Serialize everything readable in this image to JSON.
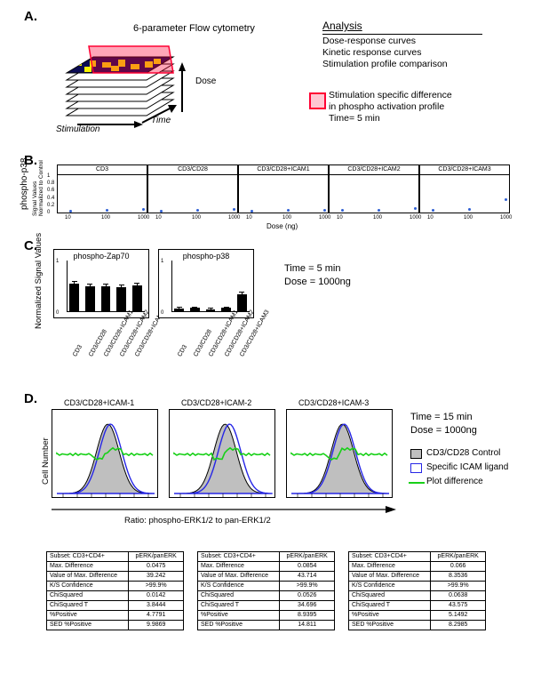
{
  "panel_letters": {
    "A": "A.",
    "B": "B.",
    "C": "C.",
    "D": "D."
  },
  "A": {
    "schematic_label": "6-parameter Flow cytometry",
    "y_arrow_label": "Dose",
    "x_axes": {
      "left": "Stimulation",
      "right": "Time"
    },
    "analysis_header": "Analysis",
    "analysis_items": [
      "Dose-response curves",
      "Kinetic response curves",
      "Stimulation profile comparison"
    ],
    "callout_box": "Stimulation specific difference\nin phospho activation profile\nTime= 5 min",
    "colors": {
      "slice_fill": "#ff0033",
      "slice_opacity": 0.35,
      "heat_dark": "#0b0b55",
      "heat_light": "#f7f300"
    }
  },
  "B": {
    "y_axis_outer": "phospho-p38",
    "y_axis_inner": "Signal Values\nNormalized to Control",
    "x_axis_label": "Dose (ng)",
    "conditions": [
      "CD3",
      "CD3/CD28",
      "CD3/CD28+ICAM1",
      "CD3/CD28+ICAM2",
      "CD3/CD28+ICAM3"
    ],
    "x_ticks": [
      10,
      100,
      1000
    ],
    "y_ticks": [
      0,
      0.2,
      0.4,
      0.6,
      0.8,
      1
    ],
    "point_color": "#2f5fd4",
    "facet_border": "#000000",
    "series_y": {
      "CD3": [
        0.04,
        0.07,
        0.08
      ],
      "CD3/CD28": [
        0.04,
        0.06,
        0.08
      ],
      "CD3/CD28+ICAM1": [
        0.04,
        0.06,
        0.07
      ],
      "CD3/CD28+ICAM2": [
        0.05,
        0.07,
        0.1
      ],
      "CD3/CD28+ICAM3": [
        0.05,
        0.09,
        0.36
      ]
    }
  },
  "C": {
    "titles": [
      "phospho-Zap70",
      "phospho-p38"
    ],
    "y_axis": "Normalized Signal Values",
    "y_ticks": [
      "0",
      "1"
    ],
    "categories": [
      "CD3",
      "CD3/CD28",
      "CD3/CD28+ICAM1",
      "CD3/CD28+ICAM2",
      "CD3/CD28+ICAM3"
    ],
    "values": {
      "phospho-Zap70": [
        0.55,
        0.5,
        0.5,
        0.48,
        0.52
      ],
      "phospho-p38": [
        0.07,
        0.08,
        0.05,
        0.08,
        0.35
      ]
    },
    "error": {
      "phospho-Zap70": [
        0.05,
        0.04,
        0.05,
        0.05,
        0.04
      ],
      "phospho-p38": [
        0.02,
        0.02,
        0.02,
        0.02,
        0.04
      ]
    },
    "bar_fill": "#000000",
    "annotation": "Time = 5 min\nDose = 1000ng"
  },
  "D": {
    "titles": [
      "CD3/CD28+ICAM-1",
      "CD3/CD28+ICAM-2",
      "CD3/CD28+ICAM-3"
    ],
    "y_axis": "Cell Number",
    "x_axis": "Ratio: phospho-ERK1/2 to pan-ERK1/2",
    "annotation": "Time = 15 min\nDose = 1000ng",
    "legend": {
      "control": {
        "label": "CD3/CD28 Control",
        "fill": "#bfbfbf"
      },
      "specific": {
        "label": "Specific ICAM ligand",
        "stroke": "#2626e6"
      },
      "diff": {
        "label": "Plot difference",
        "stroke": "#18d018"
      }
    },
    "stats_header_subset": "Subset: CD3+CD4+",
    "stats_header_col2": "pERK/panERK",
    "stats_rows": [
      "Max. Difference",
      "Value of Max. Difference",
      "K/S Confidence",
      "ChiSquared",
      "ChiSquared T",
      "%Positive",
      "SED %Positive"
    ],
    "stats_vals": [
      [
        "0.0475",
        "39.242",
        ">99.9%",
        "0.0142",
        "3.8444",
        "4.7791",
        "9.9869"
      ],
      [
        "0.0854",
        "43.714",
        ">99.9%",
        "0.0526",
        "34.696",
        "8.9395",
        "14.811"
      ],
      [
        "0.066",
        "8.3536",
        ">99.9%",
        "0.0638",
        "43.575",
        "5.1492",
        "8.2985"
      ]
    ],
    "curve_main_fill": "#bfbfbf",
    "curve_main_stroke": "#000000",
    "curve_overlay_stroke": "#2626e6",
    "diff_stroke": "#18d018"
  }
}
